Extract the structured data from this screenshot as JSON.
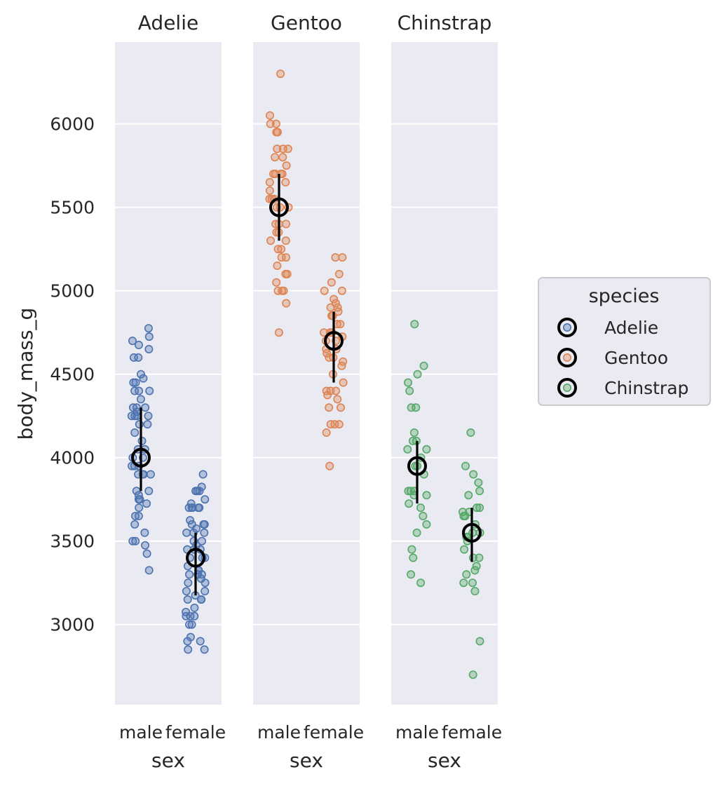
{
  "chart_data": {
    "type": "scatter",
    "subtype": "faceted strip plot with point estimate and error bars",
    "ylabel": "body_mass_g",
    "xlabel": "sex",
    "ylim": [
      2520,
      6490
    ],
    "yticks": [
      3000,
      3500,
      4000,
      4500,
      5000,
      5500,
      6000
    ],
    "categories": [
      "male",
      "female"
    ],
    "colors": {
      "Adelie": "#4c72b0",
      "Gentoo": "#dd8452",
      "Chinstrap": "#55a868"
    },
    "legend": {
      "title": "species",
      "entries": [
        "Adelie",
        "Gentoo",
        "Chinstrap"
      ],
      "placement": "right"
    },
    "facets": [
      {
        "title": "Adelie",
        "estimates": [
          {
            "category": "male",
            "value": 4000,
            "low": 3800,
            "high": 4300
          },
          {
            "category": "female",
            "value": 3400,
            "low": 3175,
            "high": 3550
          }
        ],
        "points": {
          "male": [
            4775,
            4725,
            4700,
            4675,
            4650,
            4600,
            4600,
            4500,
            4475,
            4450,
            4450,
            4400,
            4400,
            4400,
            4350,
            4300,
            4300,
            4300,
            4275,
            4250,
            4250,
            4250,
            4250,
            4200,
            4200,
            4150,
            4100,
            4050,
            4050,
            4000,
            4000,
            3950,
            3950,
            3950,
            3900,
            3900,
            3900,
            3900,
            3800,
            3800,
            3775,
            3750,
            3750,
            3725,
            3700,
            3650,
            3650,
            3600,
            3550,
            3500,
            3500,
            3475,
            3425,
            3325
          ],
          "female": [
            3900,
            3825,
            3800,
            3800,
            3800,
            3750,
            3725,
            3700,
            3700,
            3700,
            3700,
            3700,
            3625,
            3600,
            3600,
            3600,
            3575,
            3550,
            3550,
            3550,
            3500,
            3500,
            3475,
            3450,
            3450,
            3450,
            3400,
            3400,
            3400,
            3350,
            3325,
            3325,
            3300,
            3300,
            3300,
            3275,
            3250,
            3250,
            3200,
            3200,
            3175,
            3150,
            3150,
            3150,
            3100,
            3075,
            3050,
            3050,
            3050,
            3000,
            3000,
            2925,
            2900,
            2900,
            2850,
            2850
          ]
        }
      },
      {
        "title": "Gentoo",
        "estimates": [
          {
            "category": "male",
            "value": 5500,
            "low": 5300,
            "high": 5700
          },
          {
            "category": "female",
            "value": 4700,
            "low": 4450,
            "high": 4875
          }
        ],
        "points": {
          "male": [
            6300,
            6050,
            6000,
            6000,
            5950,
            5950,
            5850,
            5850,
            5850,
            5800,
            5800,
            5750,
            5700,
            5700,
            5700,
            5700,
            5650,
            5650,
            5600,
            5550,
            5550,
            5550,
            5500,
            5500,
            5500,
            5400,
            5400,
            5400,
            5350,
            5350,
            5300,
            5300,
            5250,
            5250,
            5200,
            5200,
            5150,
            5100,
            5100,
            5050,
            5000,
            5000,
            5000,
            4925,
            4750
          ],
          "female": [
            5200,
            5200,
            5100,
            5050,
            5000,
            5000,
            4950,
            4925,
            4900,
            4900,
            4875,
            4850,
            4850,
            4800,
            4800,
            4750,
            4750,
            4750,
            4725,
            4700,
            4700,
            4650,
            4650,
            4625,
            4600,
            4600,
            4575,
            4550,
            4500,
            4450,
            4400,
            4400,
            4400,
            4375,
            4350,
            4300,
            4300,
            4200,
            4200,
            4200,
            4150,
            3950
          ]
        }
      },
      {
        "title": "Chinstrap",
        "estimates": [
          {
            "category": "male",
            "value": 3950,
            "low": 3725,
            "high": 4100
          },
          {
            "category": "female",
            "value": 3550,
            "low": 3375,
            "high": 3700
          }
        ],
        "points": {
          "male": [
            4800,
            4550,
            4500,
            4450,
            4400,
            4300,
            4300,
            4150,
            4100,
            4100,
            4050,
            4050,
            4000,
            3950,
            3950,
            3900,
            3800,
            3800,
            3800,
            3775,
            3775,
            3725,
            3700,
            3650,
            3600,
            3550,
            3450,
            3400,
            3300,
            3250
          ],
          "female": [
            4150,
            3950,
            3900,
            3850,
            3800,
            3775,
            3700,
            3700,
            3675,
            3675,
            3650,
            3650,
            3600,
            3550,
            3550,
            3525,
            3525,
            3500,
            3450,
            3400,
            3400,
            3350,
            3325,
            3300,
            3250,
            3250,
            3200,
            2900,
            2700
          ]
        }
      }
    ]
  }
}
